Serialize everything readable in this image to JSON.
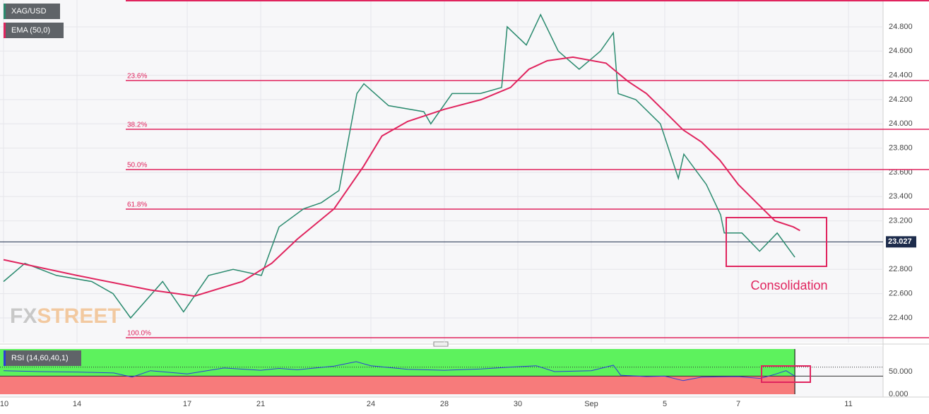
{
  "chart_data": [
    {
      "type": "line",
      "watermark": [
        "FX",
        "STREET"
      ],
      "annotation": "Consolidation",
      "current_price": 23.027,
      "top_level": 25.015,
      "fib_levels": [
        {
          "value": 24.357,
          "label": "23.6%"
        },
        {
          "value": 23.955,
          "label": "38.2%"
        },
        {
          "value": 23.623,
          "label": "50.0%"
        },
        {
          "value": 23.297,
          "label": "61.8%"
        },
        {
          "value": 22.237,
          "label": "100.0%"
        }
      ],
      "xlim": [
        0,
        24
      ],
      "ylim": [
        22.196,
        25.021
      ],
      "xticks": [
        {
          "value": 0,
          "label": "10"
        },
        {
          "value": 2,
          "label": "14"
        },
        {
          "value": 5,
          "label": "17"
        },
        {
          "value": 7,
          "label": "21"
        },
        {
          "value": 10,
          "label": "24"
        },
        {
          "value": 12,
          "label": "28"
        },
        {
          "value": 14,
          "label": "30"
        },
        {
          "value": 16,
          "label": "Sep"
        },
        {
          "value": 18,
          "label": "5"
        },
        {
          "value": 20,
          "label": "7"
        },
        {
          "value": 23,
          "label": "11"
        }
      ],
      "yticks": [
        {
          "value": 24.8,
          "label": "24.800"
        },
        {
          "value": 24.6,
          "label": "24.600"
        },
        {
          "value": 24.4,
          "label": "24.400"
        },
        {
          "value": 24.2,
          "label": "24.200"
        },
        {
          "value": 24.0,
          "label": "24.000"
        },
        {
          "value": 23.8,
          "label": "23.800"
        },
        {
          "value": 23.6,
          "label": "23.600"
        },
        {
          "value": 23.4,
          "label": "23.400"
        },
        {
          "value": 23.2,
          "label": "23.200"
        },
        {
          "value": 23.0,
          "label": "23.000"
        },
        {
          "value": 22.8,
          "label": "22.800"
        },
        {
          "value": 22.6,
          "label": "22.600"
        },
        {
          "value": 22.4,
          "label": "22.400"
        }
      ],
      "grid": true,
      "series": [
        {
          "name": "XAG/USD",
          "color": "#2a8a6e",
          "x": [
            0,
            0.58,
            1.44,
            2.4,
            2.98,
            3.46,
            4.33,
            4.9,
            5.58,
            6.25,
            7.02,
            7.5,
            8.17,
            8.65,
            9.13,
            9.62,
            9.81,
            10.48,
            11.44,
            11.63,
            12.21,
            12.98,
            13.56,
            13.71,
            14.23,
            14.62,
            15.1,
            15.67,
            16.25,
            16.6,
            16.73,
            17.21,
            17.88,
            18.37,
            18.52,
            19.13,
            19.52,
            19.62,
            20.1,
            20.58,
            21.06,
            21.54
          ],
          "values": [
            22.7,
            22.85,
            22.75,
            22.7,
            22.6,
            22.4,
            22.7,
            22.45,
            22.75,
            22.8,
            22.75,
            23.15,
            23.3,
            23.35,
            23.45,
            24.25,
            24.33,
            24.15,
            24.1,
            24.0,
            24.25,
            24.25,
            24.3,
            24.8,
            24.65,
            24.9,
            24.6,
            24.45,
            24.6,
            24.75,
            24.25,
            24.2,
            24.0,
            23.55,
            23.75,
            23.5,
            23.25,
            23.1,
            23.1,
            22.95,
            23.1,
            22.9
          ]
        },
        {
          "name": "EMA (50,0)",
          "color": "#e0245e",
          "x": [
            0,
            2,
            4,
            5.2,
            6.5,
            7.3,
            8,
            9,
            9.8,
            10.3,
            11,
            12,
            13,
            13.8,
            14.3,
            14.8,
            15.5,
            16.4,
            17,
            17.5,
            18,
            18.5,
            19,
            19.5,
            20,
            20.5,
            21,
            21.5,
            21.68
          ],
          "values": [
            22.88,
            22.75,
            22.63,
            22.58,
            22.7,
            22.85,
            23.05,
            23.3,
            23.65,
            23.9,
            24.02,
            24.12,
            24.2,
            24.3,
            24.45,
            24.52,
            24.55,
            24.5,
            24.35,
            24.25,
            24.1,
            23.95,
            23.85,
            23.7,
            23.5,
            23.35,
            23.2,
            23.15,
            23.12
          ]
        }
      ]
    },
    {
      "type": "line",
      "xlim": [
        0,
        24
      ],
      "ylim": [
        0,
        100
      ],
      "upper_level": 60,
      "lower_level": 40,
      "yticks": [
        {
          "value": 50,
          "label": "50.000"
        },
        {
          "value": 0,
          "label": "0.000"
        }
      ],
      "series": [
        {
          "name": "RSI (14,60,40,1)",
          "color": "#2b3fd6",
          "x": [
            0,
            1,
            2,
            3,
            3.5,
            4,
            5,
            6,
            7,
            7.5,
            8,
            9,
            9.6,
            10,
            11,
            12,
            13,
            13.8,
            14.5,
            15,
            16,
            16.6,
            16.8,
            17.5,
            18,
            18.5,
            19,
            20,
            20.6,
            21,
            21.3,
            21.54
          ],
          "values": [
            52,
            50,
            49,
            47,
            38,
            52,
            45,
            58,
            53,
            57,
            54,
            62,
            72,
            63,
            55,
            53,
            56,
            60,
            63,
            50,
            52,
            64,
            42,
            39,
            40,
            30,
            38,
            39,
            35,
            44,
            52,
            40
          ]
        }
      ]
    }
  ]
}
